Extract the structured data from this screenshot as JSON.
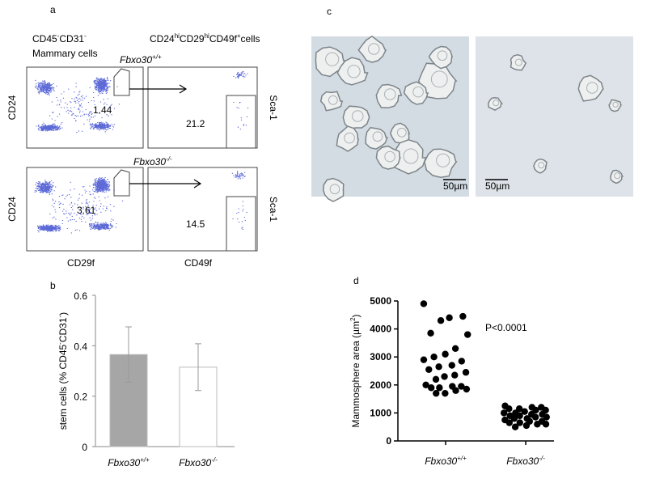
{
  "panel_labels": [
    "a",
    "b",
    "c",
    "d"
  ],
  "flow": {
    "population_left": {
      "line1": [
        {
          "text": "CD45"
        },
        {
          "sup": "-"
        },
        {
          "text": "CD31"
        },
        {
          "sup": "-"
        }
      ],
      "line2": "Mammary cells"
    },
    "population_right": [
      {
        "text": "CD24"
      },
      {
        "sup": "hi"
      },
      {
        "text": "CD29"
      },
      {
        "sup": "hi"
      },
      {
        "text": "CD49f"
      },
      {
        "sup": "+"
      },
      {
        "text": "cells"
      }
    ],
    "rows": [
      {
        "genotype": [
          {
            "text": "Fbxo30"
          },
          {
            "sup": "+/+"
          }
        ],
        "gate_left": 1.44,
        "gate_right": 21.2
      },
      {
        "genotype": [
          {
            "text": "Fbxo30"
          },
          {
            "sup": "-/-"
          }
        ],
        "gate_left": 3.61,
        "gate_right": 14.5
      }
    ],
    "y_label_left": "CD24",
    "y_label_right": "Sca-1",
    "x_label_left": "CD29f",
    "x_label_right": "CD49f"
  },
  "micrographs": {
    "scale_bars": [
      "50µm",
      "50µm"
    ]
  },
  "chart_data": [
    {
      "type": "bar",
      "categories": [
        [
          {
            "text": "Fbxo30"
          },
          {
            "sup": "+/+"
          }
        ],
        [
          {
            "text": "Fbxo30"
          },
          {
            "sup": "-/-"
          }
        ]
      ],
      "values": [
        0.365,
        0.315
      ],
      "errors": [
        0.11,
        0.093
      ],
      "colors": [
        "#a6a6a6",
        "#ffffff"
      ],
      "y_label": [
        {
          "text": "stem cells (% CD45"
        },
        {
          "sup": "-"
        },
        {
          "text": "CD31"
        },
        {
          "sup": "-"
        },
        {
          "text": ")"
        }
      ],
      "ylim": [
        0,
        0.6
      ],
      "yticks": [
        0,
        0.2,
        0.4,
        0.6
      ]
    },
    {
      "type": "strip",
      "categories": [
        [
          {
            "text": "Fbxo30"
          },
          {
            "sup": "+/+"
          }
        ],
        [
          {
            "text": "Fbxo30"
          },
          {
            "sup": "-/-"
          }
        ]
      ],
      "values": [
        [
          4900,
          4450,
          4400,
          4300,
          3850,
          3800,
          3300,
          3100,
          3000,
          2900,
          2850,
          2700,
          2650,
          2550,
          2450,
          2350,
          2300,
          2200,
          2000,
          1950,
          1950,
          1900,
          1900,
          1850,
          1800,
          1700,
          1700
        ],
        [
          1250,
          1200,
          1200,
          1150,
          1150,
          1100,
          1100,
          1050,
          1000,
          1000,
          950,
          950,
          900,
          900,
          850,
          850,
          800,
          800,
          750,
          700,
          700,
          650,
          650,
          600,
          600,
          550,
          500
        ]
      ],
      "color": "#000000",
      "y_label": [
        {
          "text": "Mammosphere area (µm"
        },
        {
          "sup": "2"
        },
        {
          "text": ")"
        }
      ],
      "annotation": "P<0.0001",
      "ylim": [
        0,
        5000
      ],
      "yticks": [
        0,
        1000,
        2000,
        3000,
        4000,
        5000
      ]
    }
  ]
}
